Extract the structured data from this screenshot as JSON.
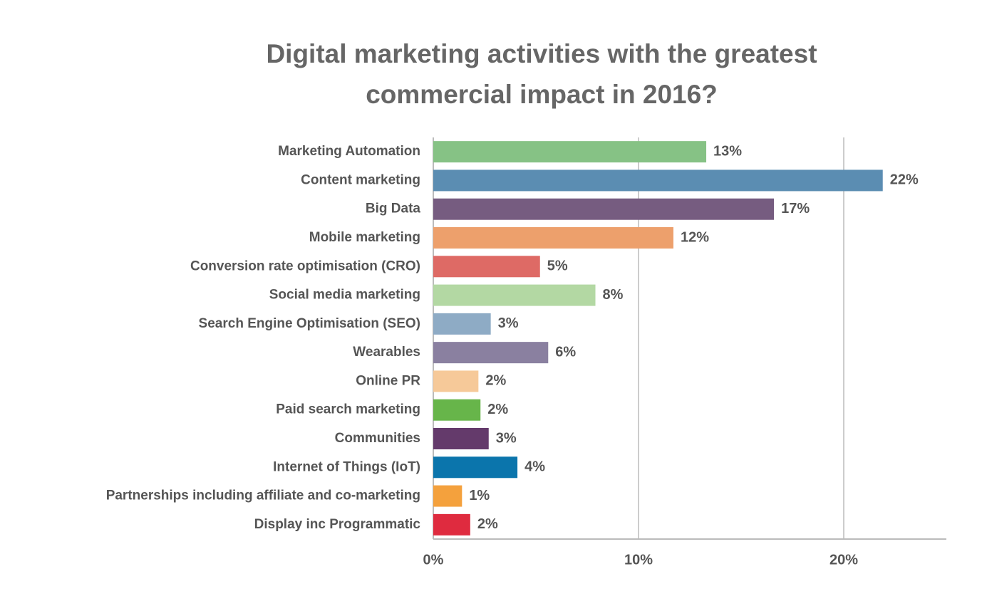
{
  "chart_data": {
    "type": "barh",
    "title_lines": [
      "Digital marketing activities with the greatest",
      "commercial impact in 2016?"
    ],
    "categories": [
      "Marketing Automation",
      "Content marketing",
      "Big Data",
      "Mobile marketing",
      "Conversion rate optimisation (CRO)",
      "Social media marketing",
      "Search Engine Optimisation (SEO)",
      "Wearables",
      "Online PR",
      "Paid search marketing",
      "Communities",
      "Internet of Things (IoT)",
      "Partnerships including affiliate and co-marketing",
      "Display inc Programmatic"
    ],
    "values": [
      13.3,
      21.9,
      16.6,
      11.7,
      5.2,
      7.9,
      2.8,
      5.6,
      2.2,
      2.3,
      2.7,
      4.1,
      1.4,
      1.8
    ],
    "value_labels": [
      "13%",
      "22%",
      "17%",
      "12%",
      "5%",
      "8%",
      "3%",
      "6%",
      "2%",
      "2%",
      "3%",
      "4%",
      "1%",
      "2%"
    ],
    "colors": [
      "#86c285",
      "#5b8db2",
      "#765c80",
      "#eda06c",
      "#de6a65",
      "#b3d8a3",
      "#8eabc5",
      "#8a80a0",
      "#f6c999",
      "#67b54a",
      "#643a6b",
      "#0b75ac",
      "#f4a13d",
      "#df2b3f"
    ],
    "xlim": [
      0,
      25
    ],
    "xticks": [
      {
        "value": 0,
        "label": "0%"
      },
      {
        "value": 10,
        "label": "10%"
      },
      {
        "value": 20,
        "label": "20%"
      }
    ],
    "grid": true
  }
}
